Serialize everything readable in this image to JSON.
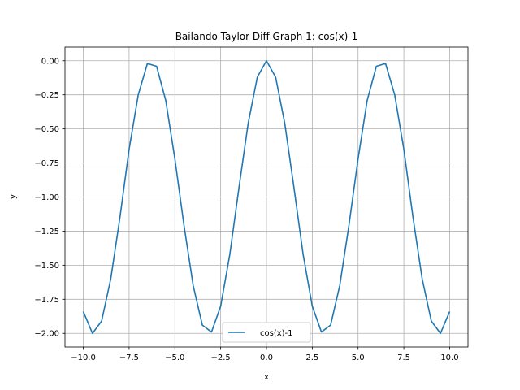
{
  "chart_data": {
    "type": "line",
    "title": "Bailando Taylor Diff Graph 1: cos(x)-1",
    "xlabel": "x",
    "ylabel": "y",
    "xlim": [
      -11.0,
      11.0
    ],
    "ylim": [
      -2.1,
      0.1
    ],
    "xticks": [
      -10.0,
      -7.5,
      -5.0,
      -2.5,
      0.0,
      2.5,
      5.0,
      7.5,
      10.0
    ],
    "xtick_labels": [
      "−10.0",
      "−7.5",
      "−5.0",
      "−2.5",
      "0.0",
      "2.5",
      "5.0",
      "7.5",
      "10.0"
    ],
    "yticks": [
      0.0,
      -0.25,
      -0.5,
      -0.75,
      -1.0,
      -1.25,
      -1.5,
      -1.75,
      -2.0
    ],
    "ytick_labels": [
      "0.00",
      "−0.25",
      "−0.50",
      "−0.75",
      "−1.00",
      "−1.25",
      "−1.50",
      "−1.75",
      "−2.00"
    ],
    "grid": true,
    "legend_position": "lower-center",
    "series": [
      {
        "name": "cos(x)-1",
        "color": "#1f77b4",
        "x": [
          -10.0,
          -9.5,
          -9.0,
          -8.5,
          -8.0,
          -7.5,
          -7.0,
          -6.5,
          -6.0,
          -5.5,
          -5.0,
          -4.5,
          -4.0,
          -3.5,
          -3.0,
          -2.5,
          -2.0,
          -1.5,
          -1.0,
          -0.5,
          0.0,
          0.5,
          1.0,
          1.5,
          2.0,
          2.5,
          3.0,
          3.5,
          4.0,
          4.5,
          5.0,
          5.5,
          6.0,
          6.5,
          7.0,
          7.5,
          8.0,
          8.5,
          9.0,
          9.5,
          10.0
        ],
        "y": [
          -1.84,
          -2.0,
          -1.91,
          -1.6,
          -1.15,
          -0.65,
          -0.25,
          -0.02,
          -0.04,
          -0.29,
          -0.72,
          -1.21,
          -1.65,
          -1.94,
          -1.99,
          -1.8,
          -1.42,
          -0.93,
          -0.46,
          -0.12,
          0.0,
          -0.12,
          -0.46,
          -0.93,
          -1.42,
          -1.8,
          -1.99,
          -1.94,
          -1.65,
          -1.21,
          -0.72,
          -0.29,
          -0.04,
          -0.02,
          -0.25,
          -0.65,
          -1.15,
          -1.6,
          -1.91,
          -2.0,
          -1.84
        ]
      }
    ]
  }
}
